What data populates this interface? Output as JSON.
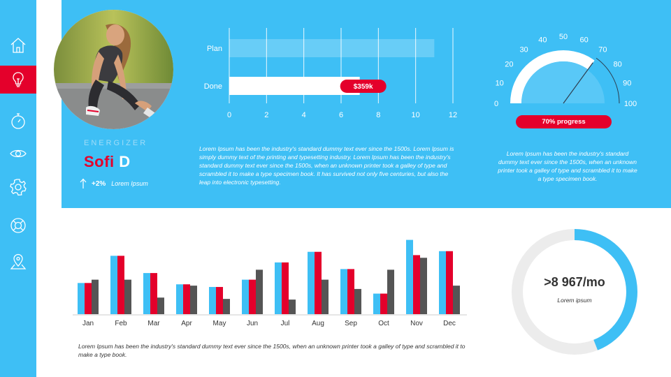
{
  "sidebar": {
    "items": [
      {
        "icon": "home-icon",
        "active": false
      },
      {
        "icon": "lightbulb-icon",
        "active": true
      },
      {
        "icon": "stopwatch-icon",
        "active": false
      },
      {
        "icon": "eye-icon",
        "active": false
      },
      {
        "icon": "gear-icon",
        "active": false
      },
      {
        "icon": "lifebuoy-icon",
        "active": false
      },
      {
        "icon": "map-pin-icon",
        "active": false
      }
    ]
  },
  "profile": {
    "role": "ENERGIZER",
    "first_name": "Sofi",
    "last_name": "D",
    "growth": "+2%",
    "growth_label": "Lorem Ipsum"
  },
  "plan_chart": {
    "type": "bar",
    "orientation": "horizontal",
    "categories": [
      "Plan",
      "Done"
    ],
    "values": [
      11,
      7
    ],
    "xlim": [
      0,
      12
    ],
    "ticks": [
      "0",
      "2",
      "4",
      "6",
      "8",
      "10",
      "12"
    ],
    "done_badge": "$359k"
  },
  "plan_description": "Lorem Ipsum has been the industry's standard dummy text ever since the 1500s. Lorem Ipsum is simply dummy text of the printing and typesetting industry. Lorem Ipsum has been the industry's standard dummy text ever since the 1500s, when an unknown printer took a galley of type and scrambled it to make a type specimen book. It has survived not only five centuries, but also the leap into electronic typesetting.",
  "gauge": {
    "value": 70,
    "range": [
      0,
      100
    ],
    "ticks": [
      "0",
      "10",
      "20",
      "30",
      "40",
      "50",
      "60",
      "70",
      "80",
      "90",
      "100"
    ],
    "progress_label": "70% progress",
    "description": "Lorem Ipsum has been the industry's standard dummy text ever since the 1500s, when an unknown printer took a galley of type and scrambled it to make a type specimen book."
  },
  "chart_data": {
    "type": "bar",
    "categories": [
      "Jan",
      "Feb",
      "Mar",
      "Apr",
      "May",
      "Jun",
      "Jul",
      "Aug",
      "Sep",
      "Oct",
      "Nov",
      "Dec"
    ],
    "series": [
      {
        "values": [
          47,
          88,
          62,
          45,
          41,
          52,
          78,
          94,
          68,
          31,
          112,
          95
        ],
        "color": "#3ebff5"
      },
      {
        "values": [
          47,
          88,
          62,
          45,
          41,
          52,
          78,
          94,
          68,
          31,
          89,
          95
        ],
        "color": "#e4002b"
      },
      {
        "values": [
          52,
          52,
          25,
          43,
          23,
          67,
          22,
          52,
          38,
          67,
          85,
          43
        ],
        "color": "#555555"
      }
    ],
    "ylim": [
      0,
      120
    ],
    "grid": false,
    "legend": "none"
  },
  "monthly_description": "Lorem Ipsum has been the industry's standard dummy text ever since the 1500s, when an unknown printer took a galley of type and scrambled it to make a type book.",
  "donut": {
    "value": ">8 967/mo",
    "label": "Lorem ipsum",
    "fraction": 0.44,
    "accent_color": "#3ebff5",
    "track_color": "#ececec"
  },
  "colors": {
    "accent_blue": "#3ebff5",
    "accent_red": "#e4002b",
    "dark_gray": "#555555"
  }
}
